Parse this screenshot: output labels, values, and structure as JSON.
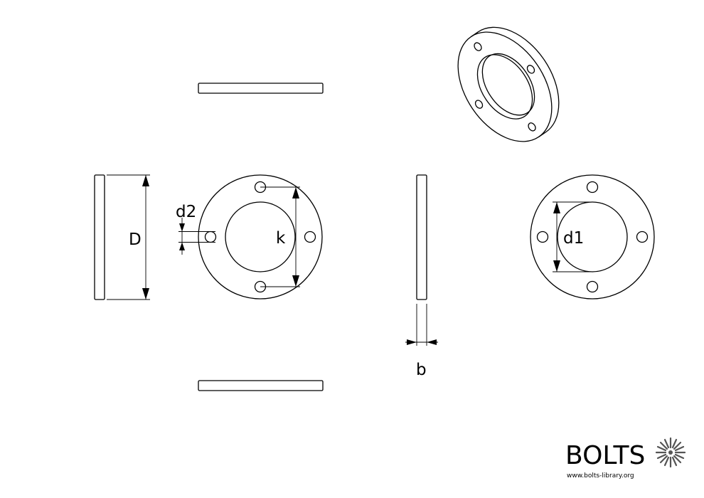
{
  "dimensions": {
    "outer_diameter": "D",
    "bolt_circle": "k",
    "hole_diameter": "d2",
    "inner_diameter": "d1",
    "thickness": "b"
  },
  "logo": {
    "name": "BOLTS",
    "url": "www.bolts-library.org"
  }
}
